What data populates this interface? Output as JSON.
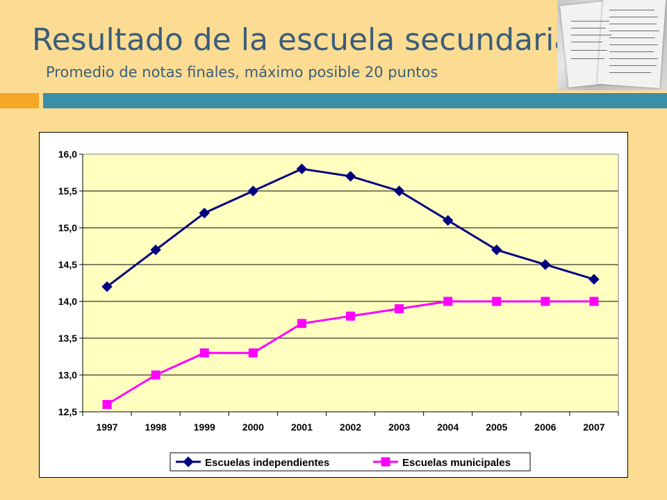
{
  "slide": {
    "title": "Resultado de la escuela secundaria",
    "subtitle": "Promedio de notas finales, máximo posible 20 puntos"
  },
  "colors": {
    "background": "#fcdc93",
    "title": "#3a5d7a",
    "accent_orange": "#f5a623",
    "accent_teal": "#3b8eaa",
    "plot_area": "#ffffc0",
    "series_independientes": "#000080",
    "series_municipales": "#ff00ff"
  },
  "chart_data": {
    "type": "line",
    "title": "",
    "xlabel": "",
    "ylabel": "",
    "categories": [
      "1997",
      "1998",
      "1999",
      "2000",
      "2001",
      "2002",
      "2003",
      "2004",
      "2005",
      "2006",
      "2007"
    ],
    "ylim": [
      12.5,
      16.0
    ],
    "yticks": [
      "16,0",
      "15,5",
      "15,0",
      "14,5",
      "14,0",
      "13,5",
      "13,0",
      "12,5"
    ],
    "ytick_values": [
      16.0,
      15.5,
      15.0,
      14.5,
      14.0,
      13.5,
      13.0,
      12.5
    ],
    "grid": true,
    "legend_position": "bottom",
    "series": [
      {
        "name": "Escuelas independientes",
        "marker": "diamond",
        "color": "#000080",
        "values": [
          14.2,
          14.7,
          15.2,
          15.5,
          15.8,
          15.7,
          15.5,
          15.1,
          14.7,
          14.5,
          14.3
        ]
      },
      {
        "name": "Escuelas municipales",
        "marker": "square",
        "color": "#ff00ff",
        "values": [
          12.6,
          13.0,
          13.3,
          13.3,
          13.7,
          13.8,
          13.9,
          14.0,
          14.0,
          14.0,
          14.0
        ]
      }
    ]
  }
}
